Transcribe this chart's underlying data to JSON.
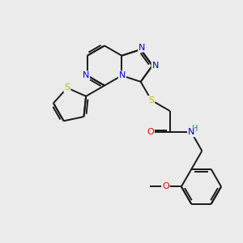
{
  "background_color": "#ebebeb",
  "bond_color": "#1a1a1a",
  "atom_colors": {
    "N": "#0000ee",
    "S": "#b8b800",
    "O": "#ee0000",
    "NH": "#008888"
  },
  "font_size": 8,
  "fig_size": [
    3.0,
    3.0
  ],
  "dpi": 100,
  "lw": 1.4
}
